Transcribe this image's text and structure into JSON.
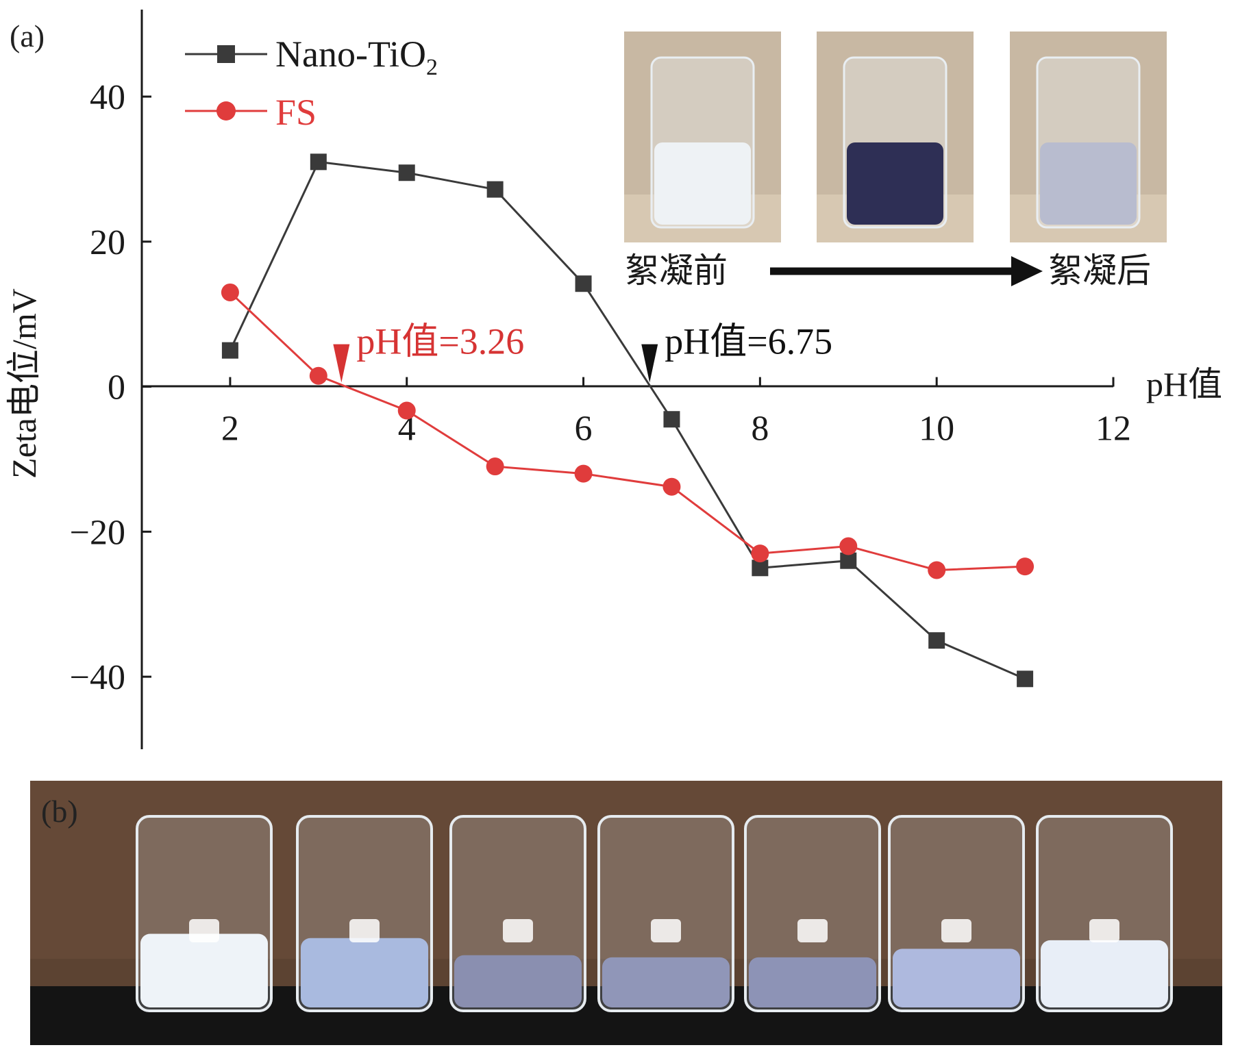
{
  "panel_a_label": "(a)",
  "panel_b_label": "(b)",
  "colors": {
    "nano": "#3a3a3a",
    "fs": "#e03c3c",
    "axis": "#1a1a1a",
    "annot_red": "#d63333",
    "annot_black": "#111111"
  },
  "chart_data": {
    "type": "line",
    "xlabel": "pH值",
    "ylabel": "Zeta电位/mV",
    "xlim": [
      1,
      12
    ],
    "ylim": [
      -50,
      52
    ],
    "xticks": [
      2,
      4,
      6,
      8,
      10,
      12
    ],
    "yticks": [
      40,
      20,
      0,
      -20,
      -40
    ],
    "ytick_labels": [
      "40",
      "20",
      "0",
      "−20",
      "−40"
    ],
    "legend_position": "top-left",
    "series": [
      {
        "name": "Nano-TiO2",
        "name_main": "Nano-TiO",
        "name_sub": "2",
        "marker": "square",
        "x": [
          2,
          3,
          4,
          5,
          6,
          7,
          8,
          9,
          10,
          11
        ],
        "y": [
          5,
          31,
          29.5,
          27.2,
          14.2,
          -4.5,
          -25,
          -24,
          -35,
          -40.3
        ]
      },
      {
        "name": "FS",
        "marker": "circle",
        "x": [
          2,
          3,
          4,
          5,
          6,
          7,
          8,
          9,
          10,
          11
        ],
        "y": [
          13,
          1.5,
          -3.3,
          -11,
          -12,
          -13.8,
          -23,
          -22,
          -25.3,
          -24.8
        ]
      }
    ],
    "annotations": [
      {
        "text": "pH值=3.26",
        "x": 3.26,
        "series": "FS"
      },
      {
        "text": "pH值=6.75",
        "x": 6.75,
        "series": "Nano-TiO2"
      }
    ]
  },
  "inset": {
    "before_label": "絮凝前",
    "after_label": "絮凝后",
    "photos": [
      {
        "liquid": "#eef2f5",
        "label": "milky suspension"
      },
      {
        "liquid": "#2e2f55",
        "label": "dark suspension"
      },
      {
        "liquid": "#b8bccf",
        "label": "settled clear"
      }
    ]
  },
  "beakers": [
    {
      "liquid": "#eef3f8",
      "level": 0.72
    },
    {
      "liquid": "#a9badf",
      "level": 0.68
    },
    {
      "liquid": "#8a8fb0",
      "level": 0.52
    },
    {
      "liquid": "#9096b8",
      "level": 0.5
    },
    {
      "liquid": "#8d93b6",
      "level": 0.5
    },
    {
      "liquid": "#aeb9de",
      "level": 0.58
    },
    {
      "liquid": "#e8eef7",
      "level": 0.66
    }
  ]
}
